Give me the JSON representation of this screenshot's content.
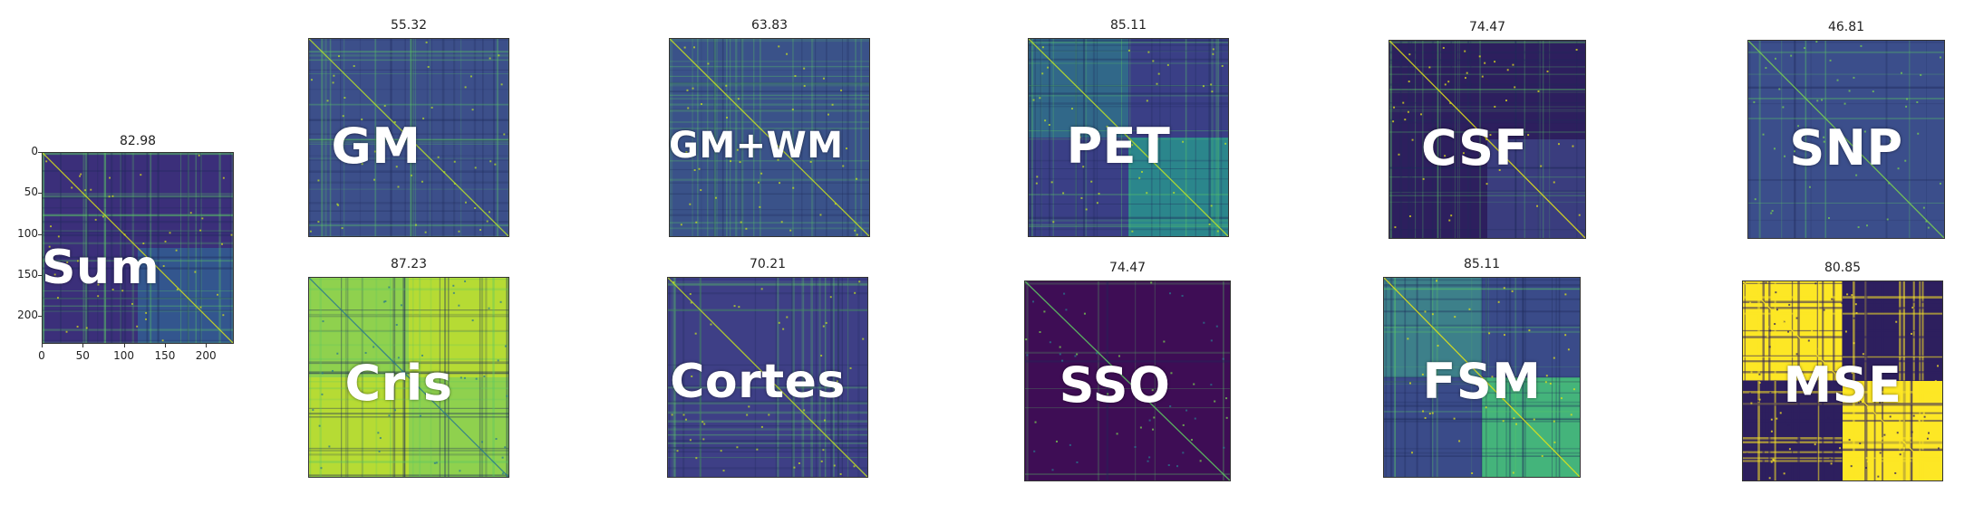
{
  "chart_data": [
    {
      "type": "heatmap",
      "name": "Sum",
      "score": "82.98",
      "style": "blocks",
      "colors": {
        "bg": "#3b2f7a",
        "block": "#33598f",
        "diag": "#d8e219"
      },
      "xticks": [
        "0",
        "50",
        "100",
        "150",
        "200"
      ],
      "yticks": [
        "0",
        "50",
        "100",
        "150",
        "200"
      ]
    },
    {
      "type": "heatmap",
      "name": "GM",
      "score": "55.32",
      "style": "noisy",
      "colors": {
        "bg": "#3c4f8a",
        "block": "#2a788e",
        "diag": "#b5de2b"
      }
    },
    {
      "type": "heatmap",
      "name": "GM+WM",
      "score": "63.83",
      "style": "noisy",
      "colors": {
        "bg": "#3a5289",
        "block": "#2c6f8e",
        "diag": "#c8e020"
      }
    },
    {
      "type": "heatmap",
      "name": "PET",
      "score": "85.11",
      "style": "blocks",
      "colors": {
        "bg": "#3a3f86",
        "block": "#2a8a8c",
        "diag": "#bde228"
      }
    },
    {
      "type": "heatmap",
      "name": "CSF",
      "score": "74.47",
      "style": "dark",
      "colors": {
        "bg": "#2d1f5e",
        "block": "#3b3f7f",
        "diag": "#e5e419"
      }
    },
    {
      "type": "heatmap",
      "name": "SNP",
      "score": "46.81",
      "style": "flat",
      "colors": {
        "bg": "#3b4e8b",
        "block": "#3d5a8e",
        "diag": "#7ad151"
      }
    },
    {
      "type": "heatmap",
      "name": "Cris",
      "score": "87.23",
      "style": "bright",
      "colors": {
        "bg": "#8fd14e",
        "block": "#c6df2a",
        "diag": "#2a788e"
      }
    },
    {
      "type": "heatmap",
      "name": "Cortes",
      "score": "70.21",
      "style": "noisy",
      "colors": {
        "bg": "#3e3f86",
        "block": "#2e6d8e",
        "diag": "#c2df23"
      }
    },
    {
      "type": "heatmap",
      "name": "SSO",
      "score": "74.47",
      "style": "sparse",
      "colors": {
        "bg": "#3e0d55",
        "block": "#46085c",
        "diag": "#5ec962"
      }
    },
    {
      "type": "heatmap",
      "name": "FSM",
      "score": "85.11",
      "style": "blocks",
      "colors": {
        "bg": "#3a4b89",
        "block": "#45b97a",
        "diag": "#e3e418"
      }
    },
    {
      "type": "heatmap",
      "name": "MSE",
      "score": "80.85",
      "style": "binary",
      "colors": {
        "bg": "#2d1f5e",
        "block": "#fde725",
        "diag": "#fde725"
      }
    }
  ]
}
